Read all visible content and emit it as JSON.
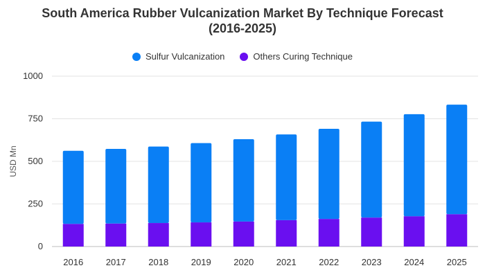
{
  "chart_data": {
    "type": "bar",
    "stacked": true,
    "title_line1": "South America Rubber Vulcanization Market By Technique Forecast",
    "title_line2": "(2016-2025)",
    "xlabel": "",
    "ylabel": "USD Mn",
    "ylim": [
      0,
      1000
    ],
    "yticks": [
      "0",
      "250",
      "500",
      "750",
      "1000"
    ],
    "grid": true,
    "legend_position": "top",
    "categories": [
      "2016",
      "2017",
      "2018",
      "2019",
      "2020",
      "2021",
      "2022",
      "2023",
      "2024",
      "2025"
    ],
    "series": [
      {
        "name": "Others Curing Technique",
        "color": "#6a0ff0",
        "values": [
          133,
          135,
          138,
          142,
          147,
          155,
          162,
          170,
          178,
          190
        ]
      },
      {
        "name": "Sulfur Vulcanization",
        "color": "#0a7ff5",
        "values": [
          429,
          438,
          449,
          465,
          483,
          503,
          529,
          563,
          599,
          643
        ]
      }
    ]
  }
}
